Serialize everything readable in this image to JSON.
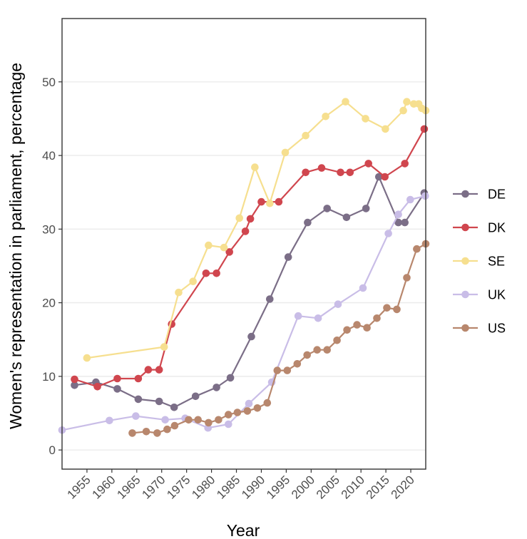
{
  "chart_data": {
    "type": "line",
    "xlabel": "Year",
    "ylabel": "Women's representation in parliament, percentage",
    "xlim": [
      1950,
      2023
    ],
    "ylim": [
      -2.6,
      58.6
    ],
    "x_ticks": [
      1955,
      1960,
      1965,
      1970,
      1975,
      1980,
      1985,
      1990,
      1995,
      2000,
      2005,
      2010,
      2015,
      2020
    ],
    "y_ticks": [
      0,
      10,
      20,
      30,
      40,
      50
    ],
    "grid": true,
    "legend_position": "right",
    "series": [
      {
        "name": "DE",
        "color": "#7b6e87",
        "points": [
          [
            1952.5,
            8.8
          ],
          [
            1956.8,
            9.2
          ],
          [
            1961.1,
            8.3
          ],
          [
            1965.3,
            6.9
          ],
          [
            1969.5,
            6.6
          ],
          [
            1972.5,
            5.8
          ],
          [
            1976.8,
            7.3
          ],
          [
            1981,
            8.5
          ],
          [
            1983.8,
            9.8
          ],
          [
            1988,
            15.4
          ],
          [
            1991.7,
            20.5
          ],
          [
            1995.4,
            26.2
          ],
          [
            1999.3,
            30.9
          ],
          [
            2003.2,
            32.8
          ],
          [
            2007.1,
            31.6
          ],
          [
            2011,
            32.8
          ],
          [
            2013.6,
            37.1
          ],
          [
            2017.5,
            30.9
          ],
          [
            2018.8,
            30.9
          ],
          [
            2022.7,
            34.9
          ]
        ]
      },
      {
        "name": "DK",
        "color": "#d0464e",
        "points": [
          [
            1952.5,
            9.6
          ],
          [
            1957.1,
            8.6
          ],
          [
            1961.1,
            9.7
          ],
          [
            1965.3,
            9.7
          ],
          [
            1967.3,
            10.9
          ],
          [
            1969.5,
            10.9
          ],
          [
            1972,
            17.1
          ],
          [
            1978.9,
            24
          ],
          [
            1981,
            24
          ],
          [
            1983.6,
            26.9
          ],
          [
            1986.8,
            29.7
          ],
          [
            1987.8,
            31.4
          ],
          [
            1990,
            33.7
          ],
          [
            1993.5,
            33.7
          ],
          [
            1998.9,
            37.7
          ],
          [
            2002.1,
            38.3
          ],
          [
            2005.9,
            37.7
          ],
          [
            2007.8,
            37.7
          ],
          [
            2011.5,
            38.9
          ],
          [
            2014.8,
            37.1
          ],
          [
            2018.8,
            38.9
          ],
          [
            2022.7,
            43.6
          ]
        ]
      },
      {
        "name": "SE",
        "color": "#f6df8f",
        "points": [
          [
            1955,
            12.5
          ],
          [
            1970.5,
            14
          ],
          [
            1973.4,
            21.4
          ],
          [
            1976.3,
            22.9
          ],
          [
            1979.4,
            27.8
          ],
          [
            1982.5,
            27.5
          ],
          [
            1985.6,
            31.5
          ],
          [
            1988.7,
            38.4
          ],
          [
            1991.7,
            33.5
          ],
          [
            1994.8,
            40.4
          ],
          [
            1998.9,
            42.7
          ],
          [
            2002.9,
            45.3
          ],
          [
            2006.9,
            47.3
          ],
          [
            2010.9,
            45
          ],
          [
            2014.9,
            43.6
          ],
          [
            2018.5,
            46.1
          ],
          [
            2019.2,
            47.3
          ],
          [
            2020.6,
            47
          ],
          [
            2021.6,
            47
          ],
          [
            2022.2,
            46.4
          ],
          [
            2023,
            46.1
          ]
        ]
      },
      {
        "name": "UK",
        "color": "#c9bde7",
        "points": [
          [
            1950,
            2.7
          ],
          [
            1959.5,
            4
          ],
          [
            1964.8,
            4.6
          ],
          [
            1970.7,
            4.1
          ],
          [
            1974.7,
            4.3
          ],
          [
            1979.3,
            3
          ],
          [
            1983.4,
            3.5
          ],
          [
            1987.5,
            6.3
          ],
          [
            1992.1,
            9.2
          ],
          [
            1997.4,
            18.2
          ],
          [
            2001.4,
            17.9
          ],
          [
            2005.4,
            19.8
          ],
          [
            2010.4,
            22
          ],
          [
            2015.5,
            29.4
          ],
          [
            2017.5,
            32
          ],
          [
            2019.9,
            34
          ],
          [
            2022.9,
            34.5
          ]
        ]
      },
      {
        "name": "US",
        "color": "#b8876d",
        "points": [
          [
            1964.1,
            2.3
          ],
          [
            1966.9,
            2.5
          ],
          [
            1969.1,
            2.3
          ],
          [
            1971.1,
            2.8
          ],
          [
            1972.6,
            3.3
          ],
          [
            1975.4,
            4.1
          ],
          [
            1977.3,
            4.1
          ],
          [
            1979.4,
            3.7
          ],
          [
            1981.4,
            4.1
          ],
          [
            1983.4,
            4.8
          ],
          [
            1985.2,
            5.1
          ],
          [
            1987.2,
            5.3
          ],
          [
            1989.2,
            5.7
          ],
          [
            1991.2,
            6.4
          ],
          [
            1993.2,
            10.8
          ],
          [
            1995.2,
            10.8
          ],
          [
            1997.2,
            11.7
          ],
          [
            1999.2,
            12.9
          ],
          [
            2001.2,
            13.6
          ],
          [
            2003.2,
            13.6
          ],
          [
            2005.2,
            14.9
          ],
          [
            2007.2,
            16.3
          ],
          [
            2009.2,
            17
          ],
          [
            2011.2,
            16.6
          ],
          [
            2013.2,
            17.9
          ],
          [
            2015.2,
            19.3
          ],
          [
            2017.2,
            19.1
          ],
          [
            2019.2,
            23.4
          ],
          [
            2021.2,
            27.3
          ],
          [
            2023,
            28
          ]
        ]
      }
    ]
  }
}
